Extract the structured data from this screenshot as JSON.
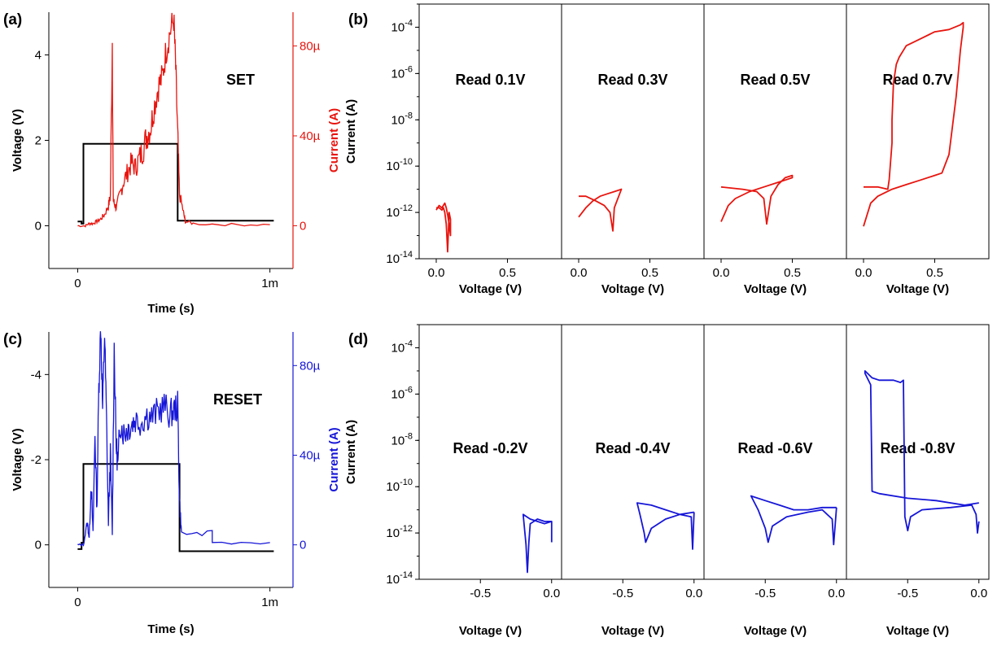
{
  "colors": {
    "set": "#e8140e",
    "reset": "#1616d8",
    "voltage": "#000000"
  },
  "chart_data": [
    {
      "id": "a",
      "type": "line",
      "panel_label": "(a)",
      "annotation": "SET",
      "xlabel": "Time (s)",
      "ylabel": "Voltage (V)",
      "y2label": "Current (A)",
      "y2color": "#e8140e",
      "xlim": [
        -0.00015,
        0.00112
      ],
      "xticks": [
        {
          "v": 0,
          "t": "0"
        },
        {
          "v": 0.001,
          "t": "1m"
        }
      ],
      "ylim": [
        -1,
        5
      ],
      "yticks": [
        {
          "v": 0,
          "t": "0"
        },
        {
          "v": 2,
          "t": "2"
        },
        {
          "v": 4,
          "t": "4"
        }
      ],
      "y2lim": [
        -19,
        95
      ],
      "y2ticks": [
        {
          "v": 0,
          "t": "0"
        },
        {
          "v": 40,
          "t": "40µ"
        },
        {
          "v": 80,
          "t": "80µ"
        }
      ],
      "series": [
        {
          "axis": "left",
          "color": "#000000",
          "x": [
            0,
            2e-05,
            2e-05,
            3e-05,
            3e-05,
            0.00052,
            0.00052,
            0.00102
          ],
          "y": [
            0.1,
            0.1,
            0.05,
            0.05,
            1.92,
            1.92,
            0.12,
            0.12
          ]
        },
        {
          "axis": "right",
          "color": "#e8140e",
          "x": [
            0,
            4e-05,
            6e-05,
            8e-05,
            0.0001,
            0.00012,
            0.00014,
            0.00016,
            0.00017,
            0.00018,
            0.000185,
            0.00019,
            0.0002,
            0.00022,
            0.00024,
            0.00026,
            0.00028,
            0.0003,
            0.00032,
            0.00034,
            0.00036,
            0.00038,
            0.0004,
            0.00042,
            0.00044,
            0.00046,
            0.00048,
            0.0005,
            0.00051,
            0.00052,
            0.00053,
            0.00055,
            0.00056,
            0.0006,
            0.0008,
            0.001
          ],
          "y": [
            0,
            0,
            1,
            1,
            2,
            3,
            5,
            9,
            13,
            82,
            12,
            10,
            8,
            14,
            20,
            24,
            28,
            26,
            30,
            34,
            40,
            44,
            54,
            62,
            66,
            78,
            86,
            92,
            70,
            40,
            14,
            6,
            2,
            1,
            0.5,
            0.5
          ]
        }
      ]
    },
    {
      "id": "c",
      "type": "line",
      "panel_label": "(c)",
      "annotation": "RESET",
      "xlabel": "Time (s)",
      "ylabel": "Voltage (V)",
      "y2label": "Current (A)",
      "y2color": "#1616d8",
      "xlim": [
        -0.00015,
        0.00112
      ],
      "xticks": [
        {
          "v": 0,
          "t": "0"
        },
        {
          "v": 0.001,
          "t": "1m"
        }
      ],
      "ylim": [
        1,
        -5
      ],
      "yticks": [
        {
          "v": 0,
          "t": "0"
        },
        {
          "v": -2,
          "t": "-2"
        },
        {
          "v": -4,
          "t": "-4"
        }
      ],
      "y2lim": [
        -19,
        95
      ],
      "y2ticks": [
        {
          "v": 0,
          "t": "0"
        },
        {
          "v": 40,
          "t": "40µ"
        },
        {
          "v": 80,
          "t": "80µ"
        }
      ],
      "series": [
        {
          "axis": "left",
          "color": "#000000",
          "x": [
            0,
            2e-05,
            2e-05,
            3e-05,
            3e-05,
            0.00053,
            0.00053,
            0.00102
          ],
          "y": [
            0.1,
            0.1,
            -0.05,
            -0.05,
            -1.9,
            -1.9,
            0.15,
            0.15
          ]
        },
        {
          "axis": "right",
          "color": "#1616d8",
          "x": [
            0,
            3e-05,
            5e-05,
            6e-05,
            7e-05,
            8e-05,
            9e-05,
            0.0001,
            0.00011,
            0.00012,
            0.00013,
            0.00014,
            0.00015,
            0.00016,
            0.00017,
            0.00018,
            0.00019,
            0.0002,
            0.00021,
            0.00022,
            0.00024,
            0.00026,
            0.00028,
            0.0003,
            0.00033,
            0.00036,
            0.00039,
            0.00042,
            0.00045,
            0.00048,
            0.0005,
            0.00052,
            0.00053,
            0.00054,
            0.0007,
            0.0007,
            0.001
          ],
          "y": [
            0,
            0,
            10,
            3,
            28,
            5,
            50,
            15,
            70,
            98,
            60,
            95,
            55,
            10,
            40,
            5,
            88,
            45,
            35,
            55,
            50,
            52,
            54,
            56,
            55,
            58,
            57,
            60,
            62,
            58,
            60,
            62,
            20,
            5,
            5,
            1,
            1
          ]
        }
      ]
    },
    {
      "id": "b",
      "type": "line",
      "panel_label": "(b)",
      "scale": "log",
      "panels": 4,
      "xlabel": "Voltage (V)",
      "ylabel": "Current (A)",
      "color": "#e8140e",
      "xlim": [
        -0.12,
        0.88
      ],
      "xticks": [
        {
          "v": 0,
          "t": "0.0"
        },
        {
          "v": 0.5,
          "t": "0.5"
        }
      ],
      "ylim": [
        -14,
        -3
      ],
      "yticks": [
        {
          "v": -14,
          "b": "10",
          "e": "-14"
        },
        {
          "v": -12,
          "b": "10",
          "e": "-12"
        },
        {
          "v": -10,
          "b": "10",
          "e": "-10"
        },
        {
          "v": -8,
          "b": "10",
          "e": "-8"
        },
        {
          "v": -6,
          "b": "10",
          "e": "-6"
        },
        {
          "v": -4,
          "b": "10",
          "e": "-4"
        }
      ],
      "subplots": [
        {
          "label": "Read 0.1V",
          "x": [
            0.0,
            0.02,
            0.04,
            0.06,
            0.07,
            0.08,
            0.09,
            0.1,
            0.1,
            0.09,
            0.08,
            0.07,
            0.06,
            0.05,
            0.04,
            0.02,
            0.0
          ],
          "y": [
            -11.9,
            -11.7,
            -11.8,
            -11.6,
            -11.8,
            -12.1,
            -12.5,
            -13.0,
            -12.3,
            -12.0,
            -13.7,
            -12.5,
            -12.0,
            -11.8,
            -11.9,
            -11.8,
            -11.8
          ]
        },
        {
          "label": "Read 0.3V",
          "x": [
            0.0,
            0.05,
            0.1,
            0.15,
            0.2,
            0.25,
            0.3,
            0.25,
            0.24,
            0.22,
            0.18,
            0.12,
            0.05,
            0.0
          ],
          "y": [
            -12.2,
            -11.8,
            -11.5,
            -11.3,
            -11.2,
            -11.1,
            -11.0,
            -11.8,
            -12.8,
            -12.0,
            -11.7,
            -11.5,
            -11.3,
            -11.3
          ]
        },
        {
          "label": "Read 0.5V",
          "x": [
            0.0,
            0.05,
            0.1,
            0.2,
            0.3,
            0.4,
            0.45,
            0.5,
            0.5,
            0.45,
            0.4,
            0.35,
            0.32,
            0.3,
            0.25,
            0.15,
            0.0
          ],
          "y": [
            -12.4,
            -11.7,
            -11.4,
            -11.1,
            -10.9,
            -10.7,
            -10.6,
            -10.5,
            -10.4,
            -10.5,
            -10.8,
            -11.3,
            -12.5,
            -11.4,
            -11.1,
            -11.0,
            -10.9
          ]
        },
        {
          "label": "Read 0.7V",
          "x": [
            0.0,
            0.05,
            0.1,
            0.2,
            0.3,
            0.4,
            0.5,
            0.55,
            0.6,
            0.65,
            0.68,
            0.7,
            0.7,
            0.68,
            0.6,
            0.5,
            0.4,
            0.3,
            0.25,
            0.23,
            0.21,
            0.2,
            0.2,
            0.18,
            0.17,
            0.1,
            0.0
          ],
          "y": [
            -12.6,
            -11.6,
            -11.3,
            -11.0,
            -10.8,
            -10.6,
            -10.4,
            -10.3,
            -9.5,
            -7.0,
            -5.0,
            -4.0,
            -3.8,
            -3.9,
            -4.1,
            -4.2,
            -4.5,
            -4.8,
            -5.3,
            -5.6,
            -6.4,
            -8.0,
            -9.0,
            -10.6,
            -11.0,
            -10.9,
            -10.9
          ]
        }
      ]
    },
    {
      "id": "d",
      "type": "line",
      "panel_label": "(d)",
      "scale": "log",
      "panels": 4,
      "xlabel": "Voltage (V)",
      "ylabel": "Current (A)",
      "color": "#1616d8",
      "xlim": [
        -0.93,
        0.07
      ],
      "xticks": [
        {
          "v": -0.5,
          "t": "-0.5"
        },
        {
          "v": 0,
          "t": "0.0"
        }
      ],
      "ylim": [
        -14,
        -3
      ],
      "yticks": [
        {
          "v": -14,
          "b": "10",
          "e": "-14"
        },
        {
          "v": -12,
          "b": "10",
          "e": "-12"
        },
        {
          "v": -10,
          "b": "10",
          "e": "-10"
        },
        {
          "v": -8,
          "b": "10",
          "e": "-8"
        },
        {
          "v": -6,
          "b": "10",
          "e": "-6"
        },
        {
          "v": -4,
          "b": "10",
          "e": "-4"
        }
      ],
      "subplots": [
        {
          "label": "Read -0.2V",
          "x": [
            0.0,
            -0.05,
            -0.1,
            -0.15,
            -0.2,
            -0.18,
            -0.17,
            -0.16,
            -0.15,
            -0.1,
            -0.05,
            0.0,
            0.0
          ],
          "y": [
            -11.5,
            -11.6,
            -11.5,
            -11.4,
            -11.2,
            -12.5,
            -13.7,
            -12.4,
            -11.6,
            -11.4,
            -11.5,
            -11.5,
            -12.4
          ]
        },
        {
          "label": "Read -0.4V",
          "x": [
            0.0,
            -0.1,
            -0.2,
            -0.3,
            -0.4,
            -0.38,
            -0.35,
            -0.34,
            -0.3,
            -0.2,
            -0.1,
            -0.02,
            -0.01,
            0.0
          ],
          "y": [
            -11.1,
            -11.2,
            -11.0,
            -10.8,
            -10.7,
            -11.2,
            -12.0,
            -12.4,
            -11.8,
            -11.4,
            -11.2,
            -11.3,
            -12.7,
            -11.1
          ]
        },
        {
          "label": "Read -0.6V",
          "x": [
            0.0,
            -0.1,
            -0.2,
            -0.3,
            -0.4,
            -0.5,
            -0.6,
            -0.55,
            -0.5,
            -0.48,
            -0.45,
            -0.35,
            -0.2,
            -0.1,
            -0.03,
            -0.02,
            0.0
          ],
          "y": [
            -10.9,
            -10.9,
            -11.0,
            -11.0,
            -10.8,
            -10.6,
            -10.4,
            -11.0,
            -11.8,
            -12.4,
            -11.7,
            -11.3,
            -11.1,
            -11.0,
            -11.4,
            -12.5,
            -10.9
          ]
        },
        {
          "label": "Read -0.8V",
          "x": [
            0.0,
            -0.1,
            -0.3,
            -0.5,
            -0.7,
            -0.75,
            -0.76,
            -0.8,
            -0.8,
            -0.75,
            -0.7,
            -0.6,
            -0.55,
            -0.53,
            -0.52,
            -0.5,
            -0.48,
            -0.4,
            -0.2,
            -0.05,
            -0.02,
            -0.01,
            0.0
          ],
          "y": [
            -10.7,
            -10.8,
            -10.6,
            -10.5,
            -10.3,
            -10.2,
            -5.6,
            -5.1,
            -5.0,
            -5.3,
            -5.4,
            -5.4,
            -5.5,
            -5.4,
            -11.3,
            -11.9,
            -11.3,
            -11.0,
            -10.9,
            -10.8,
            -11.2,
            -12.0,
            -11.5
          ]
        }
      ]
    }
  ]
}
